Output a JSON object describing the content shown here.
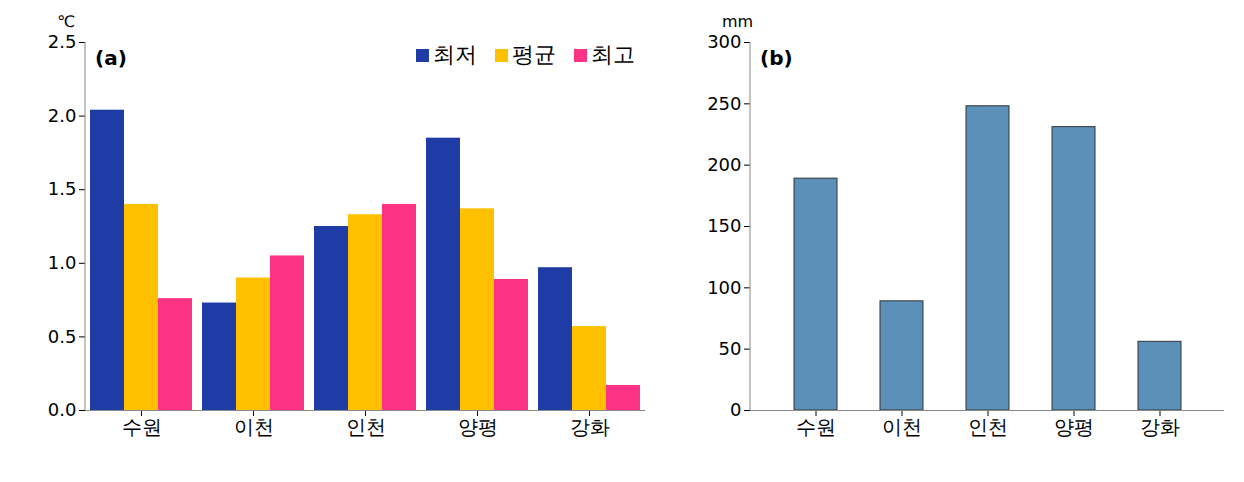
{
  "chart_data": [
    {
      "type": "bar",
      "title": "(a)",
      "y_label": "℃",
      "categories": [
        "수원",
        "이천",
        "인천",
        "양평",
        "강화"
      ],
      "series": [
        {
          "name": "최저",
          "color": "#1f3ca6",
          "values": [
            2.04,
            0.73,
            1.25,
            1.85,
            0.97
          ]
        },
        {
          "name": "평균",
          "color": "#ffc000",
          "values": [
            1.4,
            0.9,
            1.33,
            1.37,
            0.57
          ]
        },
        {
          "name": "최고",
          "color": "#ff3385",
          "values": [
            0.76,
            1.05,
            1.4,
            0.89,
            0.17
          ]
        }
      ],
      "ylim": [
        0,
        2.5
      ],
      "yticks": [
        {
          "value": 0,
          "label": "0.0"
        },
        {
          "value": 0.5,
          "label": "0.5"
        },
        {
          "value": 1,
          "label": "1.0"
        },
        {
          "value": 1.5,
          "label": "1.5"
        },
        {
          "value": 2,
          "label": "2.0"
        },
        {
          "value": 2.5,
          "label": "2.5"
        }
      ],
      "legend": "top-right",
      "grid": false
    },
    {
      "type": "bar",
      "title": "(b)",
      "y_label": "mm",
      "categories": [
        "수원",
        "이천",
        "인천",
        "양평",
        "강화"
      ],
      "values": [
        189,
        89,
        248,
        231,
        56
      ],
      "color": "#5b91b8",
      "ylim": [
        0,
        300
      ],
      "yticks": [
        0,
        50,
        100,
        150,
        200,
        250,
        300
      ],
      "grid": false
    }
  ]
}
